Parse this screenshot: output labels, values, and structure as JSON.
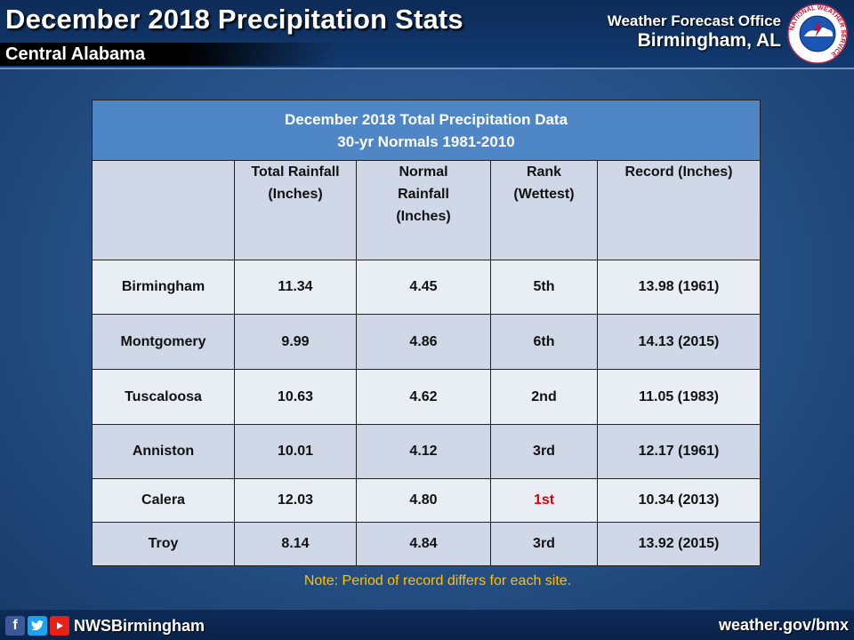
{
  "header": {
    "title": "December 2018 Precipitation Stats",
    "region": "Central Alabama",
    "office_line1": "Weather Forecast Office",
    "office_line2": "Birmingham, AL",
    "logo_icon": "nws-logo-icon",
    "logo_text": "NATIONAL WEATHER SERVICE"
  },
  "table": {
    "caption_line1": "December 2018 Total Precipitation Data",
    "caption_line2": "30-yr Normals 1981-2010",
    "columns": [
      {
        "line1": "",
        "line2": "",
        "line3": ""
      },
      {
        "line1": "Total Rainfall",
        "line2": "(Inches)",
        "line3": ""
      },
      {
        "line1": "Normal",
        "line2": "Rainfall",
        "line3": "(Inches)"
      },
      {
        "line1": "Rank",
        "line2": "(Wettest)",
        "line3": ""
      },
      {
        "line1": "Record (Inches)",
        "line2": "",
        "line3": ""
      }
    ],
    "rows": [
      {
        "site": "Birmingham",
        "total": "11.34",
        "normal": "4.45",
        "rank": "5th",
        "record": "13.98 (1961)"
      },
      {
        "site": "Montgomery",
        "total": "9.99",
        "normal": "4.86",
        "rank": "6th",
        "record": "14.13 (2015)"
      },
      {
        "site": "Tuscaloosa",
        "total": "10.63",
        "normal": "4.62",
        "rank": "2nd",
        "record": "11.05 (1983)"
      },
      {
        "site": "Anniston",
        "total": "10.01",
        "normal": "4.12",
        "rank": "3rd",
        "record": "12.17 (1961)"
      },
      {
        "site": "Calera",
        "total": "12.03",
        "normal": "4.80",
        "rank": "1st",
        "record": "10.34 (2013)"
      },
      {
        "site": "Troy",
        "total": "8.14",
        "normal": "4.84",
        "rank": "3rd",
        "record": "13.92 (2015)"
      }
    ]
  },
  "note": "Note: Period of record differs for each site.",
  "footer": {
    "icons": [
      "facebook-icon",
      "twitter-icon",
      "youtube-icon"
    ],
    "handle": "NWSBirmingham",
    "website": "weather.gov/bmx"
  },
  "colors": {
    "header_bg": "#0d2b57",
    "caption_bg": "#4f86c6",
    "row_light": "#e9edf4",
    "row_dark": "#d0d8e8",
    "record_rank": "#e00000",
    "note": "#ffc000"
  }
}
